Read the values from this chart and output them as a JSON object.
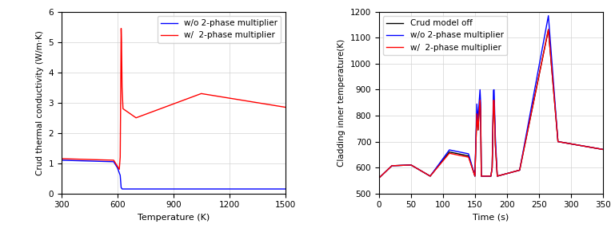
{
  "left": {
    "xlabel": "Temperature (K)",
    "ylabel": "Crud thermal conductivity (W/m·K)",
    "xlim": [
      300,
      1500
    ],
    "ylim": [
      0,
      6
    ],
    "xticks": [
      300,
      600,
      900,
      1200,
      1500
    ],
    "yticks": [
      0,
      1,
      2,
      3,
      4,
      5,
      6
    ],
    "legend": [
      "w/o 2-phase multiplier",
      "w/  2-phase multiplier"
    ],
    "colors": [
      "blue",
      "red"
    ],
    "grid": true
  },
  "right": {
    "xlabel": "Time (s)",
    "ylabel": "Cladding inner temperature(K)",
    "xlim": [
      0,
      350
    ],
    "ylim": [
      500,
      1200
    ],
    "xticks": [
      0,
      50,
      100,
      150,
      200,
      250,
      300,
      350
    ],
    "yticks": [
      500,
      600,
      700,
      800,
      900,
      1000,
      1100,
      1200
    ],
    "legend": [
      "Crud model off",
      "w/o 2-phase multiplier",
      "w/  2-phase multiplier"
    ],
    "colors": [
      "black",
      "blue",
      "red"
    ],
    "grid": true
  }
}
